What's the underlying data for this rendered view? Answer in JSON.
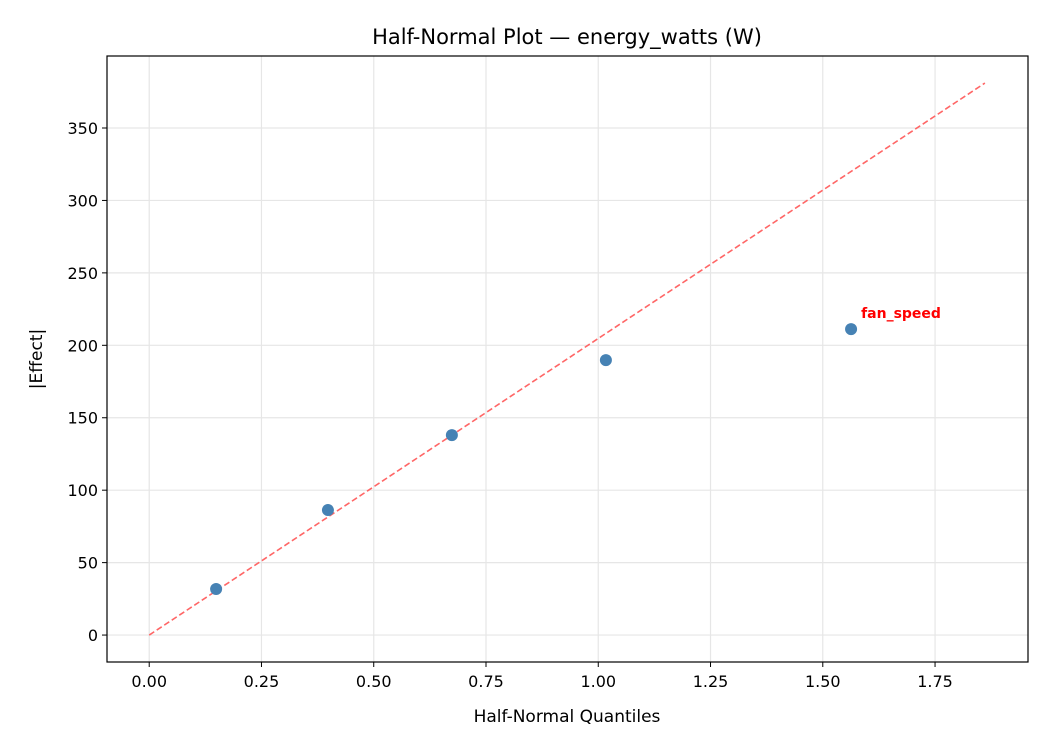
{
  "chart_data": {
    "type": "scatter",
    "title": "Half-Normal Plot — energy_watts (W)",
    "xlabel": "Half-Normal Quantiles",
    "ylabel": "|Effect|",
    "xlim": [
      -0.094,
      1.957
    ],
    "ylim": [
      -18.6,
      399.7
    ],
    "xticks": [
      0.0,
      0.25,
      0.5,
      0.75,
      1.0,
      1.25,
      1.5,
      1.75
    ],
    "xtick_labels": [
      "0.00",
      "0.25",
      "0.50",
      "0.75",
      "1.00",
      "1.25",
      "1.50",
      "1.75"
    ],
    "yticks": [
      0,
      50,
      100,
      150,
      200,
      250,
      300,
      350
    ],
    "ytick_labels": [
      "0",
      "50",
      "100",
      "150",
      "200",
      "250",
      "300",
      "350"
    ],
    "grid": true,
    "points": [
      {
        "x": 0.149,
        "y": 31.8,
        "label": ""
      },
      {
        "x": 0.398,
        "y": 86.3,
        "label": ""
      },
      {
        "x": 0.674,
        "y": 138.0,
        "label": ""
      },
      {
        "x": 1.017,
        "y": 189.8,
        "label": ""
      },
      {
        "x": 1.563,
        "y": 211.2,
        "label": "fan_speed"
      }
    ],
    "reference_line": {
      "x": [
        0,
        1.861
      ],
      "y": [
        0,
        381
      ],
      "style": "dashed"
    },
    "colors": {
      "points": "#4682b4",
      "reference_line": "#ff6666",
      "annotation": "#ff0000",
      "grid": "#e6e6e6"
    }
  }
}
